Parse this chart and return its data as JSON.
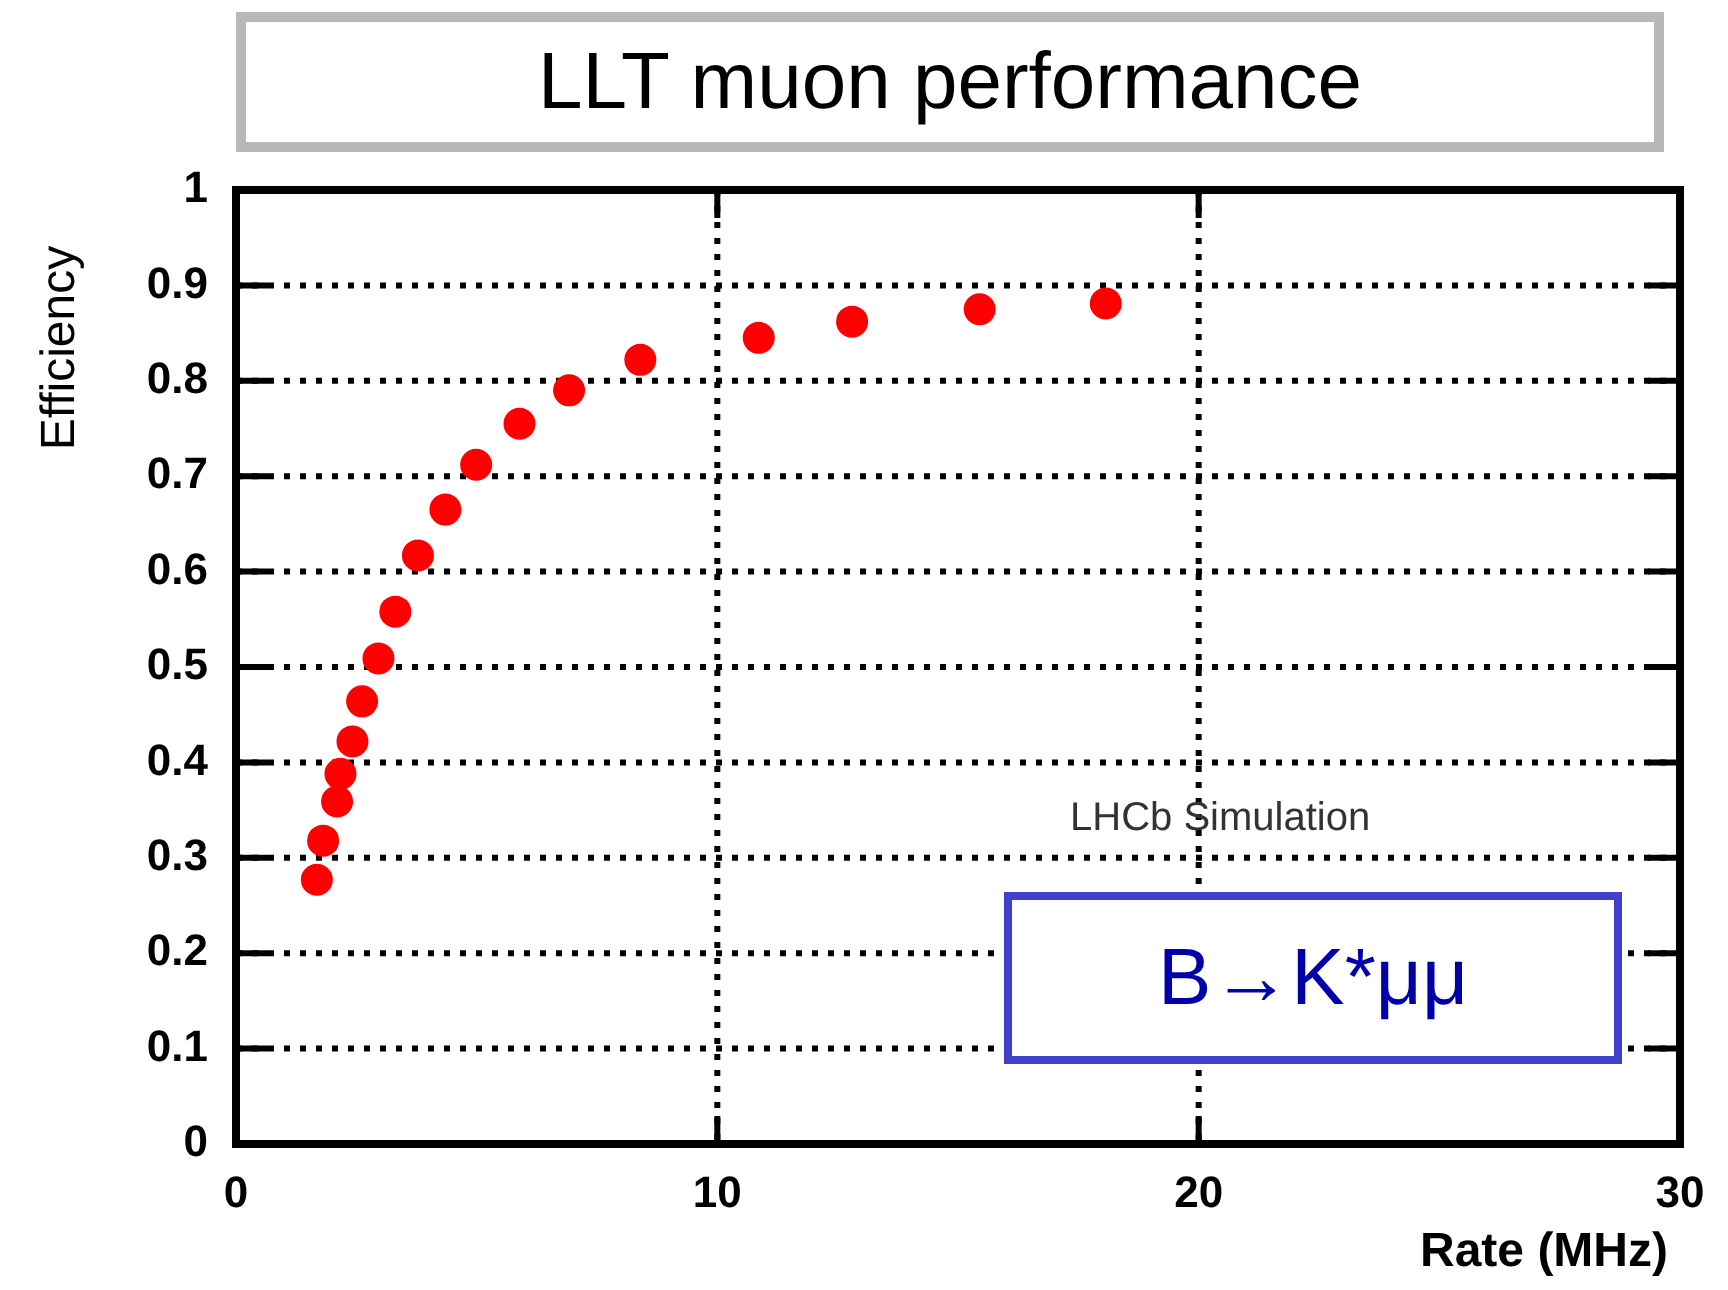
{
  "chart_data": {
    "type": "scatter",
    "title": "LLT muon performance",
    "xlabel": "Rate (MHz)",
    "ylabel": "Efficiency",
    "annotations": [
      "LHCb Simulation",
      "B→K*μμ"
    ],
    "x": [
      1.68,
      1.81,
      2.1,
      2.17,
      2.42,
      2.62,
      2.96,
      3.31,
      3.78,
      4.35,
      4.99,
      5.89,
      6.92,
      8.4,
      10.86,
      12.8,
      15.45,
      18.07
    ],
    "series": [
      {
        "color": "#ff0000",
        "values": [
          0.277,
          0.318,
          0.359,
          0.388,
          0.422,
          0.464,
          0.509,
          0.558,
          0.617,
          0.665,
          0.712,
          0.755,
          0.79,
          0.822,
          0.845,
          0.862,
          0.875,
          0.881
        ]
      }
    ],
    "xlim": [
      0,
      30
    ],
    "xticks": [
      0,
      10,
      20,
      30
    ],
    "ylim": [
      0,
      1
    ],
    "yticks": [
      0,
      0.1,
      0.2,
      0.3,
      0.4,
      0.5,
      0.6,
      0.7,
      0.8,
      0.9,
      1
    ],
    "grid": true,
    "legend": false,
    "marker": "circle"
  }
}
